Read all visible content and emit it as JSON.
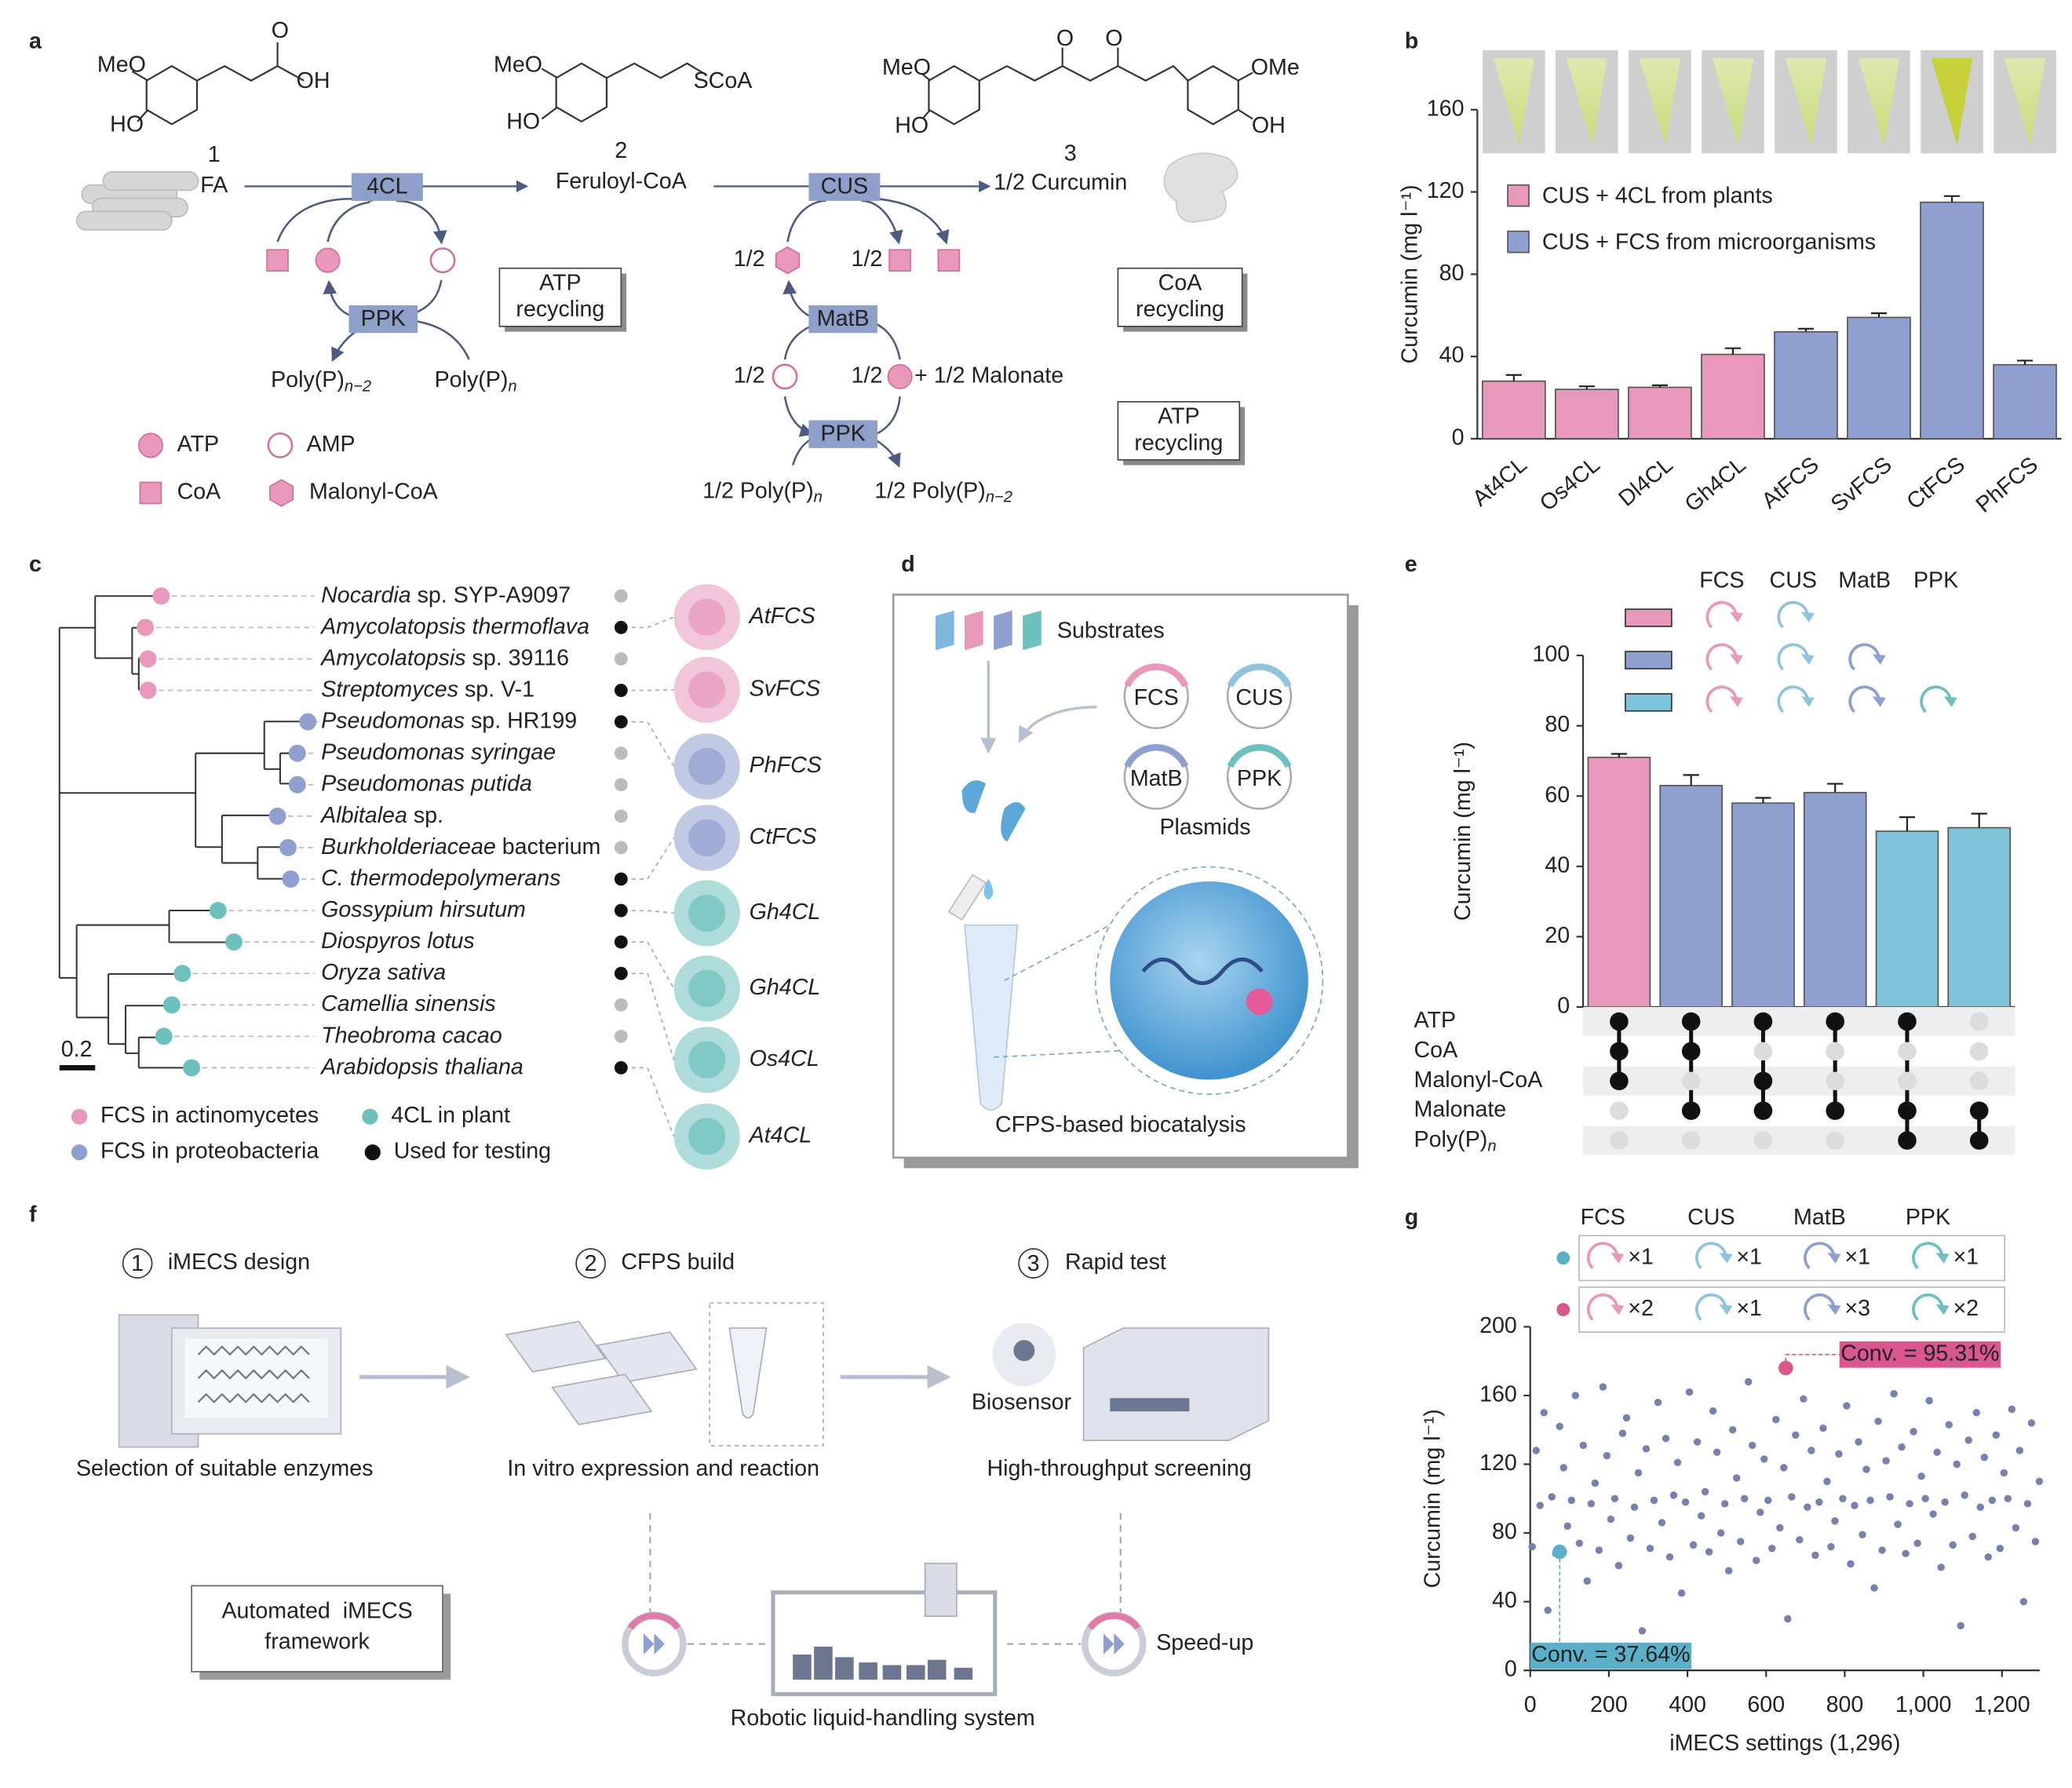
{
  "panel_labels": [
    "a",
    "b",
    "c",
    "d",
    "e",
    "f",
    "g"
  ],
  "pathway": {
    "structures": {
      "s1": [
        "MeO",
        "HO",
        "O",
        "OH"
      ],
      "s2": [
        "MeO",
        "HO",
        "SCoA"
      ],
      "s3": [
        "MeO",
        "HO",
        "O",
        "O",
        "OMe",
        "OH"
      ]
    },
    "compounds": [
      {
        "number": "1",
        "name": "FA"
      },
      {
        "number": "2",
        "name": "Feruloyl-CoA"
      },
      {
        "number": "3",
        "name": "1/2 Curcumin"
      }
    ],
    "enzymes": [
      "4CL",
      "CUS",
      "PPK",
      "MatB",
      "PPK"
    ],
    "recycling": [
      [
        "ATP",
        "recycling"
      ],
      [
        "CoA",
        "recycling"
      ],
      [
        "ATP",
        "recycling"
      ]
    ],
    "half_labels": [
      "1/2",
      "1/2",
      "1/2",
      "1/2"
    ],
    "malonate": "+ 1/2 Malonate",
    "polyp": [
      {
        "text": "Poly(P)",
        "sub": "n−2"
      },
      {
        "text": "Poly(P)",
        "sub": "n"
      },
      {
        "text": "1/2 Poly(P)",
        "sub": "n"
      },
      {
        "text": "1/2 Poly(P)",
        "sub": "n−2"
      }
    ],
    "legend": [
      "ATP",
      "AMP",
      "CoA",
      "Malonyl-CoA"
    ]
  },
  "tree": {
    "species": [
      {
        "italic": "Nocardia",
        "plain": " sp. SYP-A9097",
        "group": 0,
        "used": false
      },
      {
        "italic": "Amycolatopsis thermoflava",
        "group": 0,
        "used": true
      },
      {
        "italic": "Amycolatopsis",
        "plain": " sp. 39116",
        "group": 0,
        "used": false
      },
      {
        "italic": "Streptomyces",
        "plain": " sp. V-1",
        "group": 0,
        "used": true
      },
      {
        "italic": "Pseudomonas",
        "plain": " sp. HR199",
        "group": 1,
        "used": true
      },
      {
        "italic": "Pseudomonas syringae",
        "group": 1,
        "used": false
      },
      {
        "italic": "Pseudomonas putida",
        "group": 1,
        "used": false
      },
      {
        "italic": "Albitalea",
        "plain": " sp.",
        "group": 1,
        "used": false
      },
      {
        "italic": "Burkholderiaceae",
        "plain": " bacterium",
        "group": 1,
        "used": false
      },
      {
        "italic": "C. thermodepolymerans",
        "group": 1,
        "used": true
      },
      {
        "italic": "Gossypium hirsutum",
        "group": 2,
        "used": true
      },
      {
        "italic": "Diospyros lotus",
        "group": 2,
        "used": true
      },
      {
        "italic": "Oryza sativa",
        "group": 2,
        "used": true
      },
      {
        "italic": "Camellia sinensis",
        "group": 2,
        "used": false
      },
      {
        "italic": "Theobroma cacao",
        "group": 2,
        "used": false
      },
      {
        "italic": "Arabidopsis thaliana",
        "group": 2,
        "used": true
      }
    ],
    "groups": [
      {
        "name": "FCS in actinomycetes",
        "color": "#e898bb"
      },
      {
        "name": "FCS in proteobacteria",
        "color": "#8e9fd0"
      },
      {
        "name": "4CL in plant",
        "color": "#6cc0bd"
      }
    ],
    "used_label": "Used for testing",
    "scale": "0.2",
    "enzymes": [
      {
        "name": "AtFCS",
        "group": 0
      },
      {
        "name": "SvFCS",
        "group": 0
      },
      {
        "name": "PhFCS",
        "group": 1
      },
      {
        "name": "CtFCS",
        "group": 1
      },
      {
        "name": "Gh4CL",
        "group": 2
      },
      {
        "name": "Gh4CL",
        "group": 2
      },
      {
        "name": "Os4CL",
        "group": 2
      },
      {
        "name": "At4CL",
        "group": 2
      }
    ]
  },
  "cfps": {
    "substrates": "Substrates",
    "plasmids": [
      "FCS",
      "CUS",
      "MatB",
      "PPK"
    ],
    "plasmids_label": "Plasmids",
    "caption": "CFPS-based biocatalysis"
  },
  "workflow": {
    "steps": [
      {
        "number": "1",
        "title": "iMECS design",
        "caption": "Selection of suitable enzymes"
      },
      {
        "number": "2",
        "title": "CFPS build",
        "caption": "In vitro expression and reaction"
      },
      {
        "number": "3",
        "title": "Rapid test",
        "caption": "High-throughput screening"
      }
    ],
    "biosensor": "Biosensor",
    "framework": [
      "Automated  iMECS",
      "framework"
    ],
    "robot": "Robotic liquid-handling system",
    "speedup": "Speed-up"
  },
  "chart_data": [
    {
      "type": "bar",
      "categories": [
        "At4CL",
        "Os4CL",
        "Dl4CL",
        "Gh4CL",
        "AtFCS",
        "SvFCS",
        "CtFCS",
        "PhFCS"
      ],
      "values": [
        28,
        24,
        25,
        41,
        52,
        59,
        115,
        36
      ],
      "errors": [
        3,
        1.5,
        1,
        3,
        1.5,
        2,
        3,
        2
      ],
      "colors": [
        "#e898bb",
        "#e898bb",
        "#e898bb",
        "#e898bb",
        "#8e9fd0",
        "#8e9fd0",
        "#8e9fd0",
        "#8e9fd0"
      ],
      "legend": [
        {
          "name": "CUS + 4CL from plants",
          "color": "#e898bb"
        },
        {
          "name": "CUS + FCS from microorganisms",
          "color": "#8e9fd0"
        }
      ],
      "ylabel": "Curcumin (mg l⁻¹)",
      "ylim": [
        0,
        160
      ],
      "yticks": [
        0,
        40,
        80,
        120,
        160
      ]
    },
    {
      "type": "bar",
      "values": [
        71,
        63,
        58,
        61,
        50,
        51
      ],
      "errors": [
        1,
        3,
        1.5,
        2.5,
        4,
        4
      ],
      "colors": [
        "#e898bb",
        "#8e9fd0",
        "#8e9fd0",
        "#8e9fd0",
        "#7fc3da",
        "#7fc3da"
      ],
      "ylabel": "Curcumin (mg l⁻¹)",
      "ylim": [
        0,
        100
      ],
      "yticks": [
        0,
        20,
        40,
        60,
        80,
        100
      ],
      "enzyme_columns": [
        "FCS",
        "CUS",
        "MatB",
        "PPK"
      ],
      "enzyme_sets": [
        {
          "color": "#e898bb",
          "present": [
            true,
            true,
            false,
            false
          ]
        },
        {
          "color": "#8e9fd0",
          "present": [
            true,
            true,
            true,
            false
          ]
        },
        {
          "color": "#7fc3da",
          "present": [
            true,
            true,
            true,
            true
          ]
        }
      ],
      "matrix_rows": [
        "ATP",
        "CoA",
        "Malonyl-CoA",
        "Malonate",
        {
          "text": "Poly(P)",
          "sub": "n"
        }
      ],
      "matrix": [
        [
          true,
          true,
          true,
          false,
          false
        ],
        [
          true,
          true,
          false,
          true,
          false
        ],
        [
          true,
          false,
          true,
          true,
          false
        ],
        [
          true,
          false,
          false,
          true,
          false
        ],
        [
          true,
          false,
          false,
          true,
          true
        ],
        [
          false,
          false,
          false,
          true,
          true
        ]
      ]
    },
    {
      "type": "scatter",
      "color": "#7482ad",
      "x": [
        5,
        15,
        25,
        35,
        45,
        55,
        65,
        75,
        85,
        95,
        105,
        115,
        125,
        135,
        145,
        155,
        165,
        175,
        185,
        195,
        205,
        215,
        225,
        235,
        245,
        255,
        265,
        275,
        285,
        295,
        305,
        315,
        325,
        335,
        345,
        355,
        365,
        375,
        385,
        395,
        405,
        415,
        425,
        435,
        445,
        455,
        465,
        475,
        485,
        495,
        505,
        515,
        525,
        535,
        545,
        555,
        565,
        575,
        585,
        595,
        605,
        615,
        625,
        635,
        645,
        655,
        665,
        675,
        685,
        695,
        705,
        715,
        725,
        735,
        745,
        755,
        765,
        775,
        785,
        795,
        805,
        815,
        825,
        835,
        845,
        855,
        865,
        875,
        885,
        895,
        905,
        915,
        925,
        935,
        945,
        955,
        965,
        975,
        985,
        995,
        1005,
        1015,
        1025,
        1035,
        1045,
        1055,
        1065,
        1075,
        1085,
        1095,
        1105,
        1115,
        1125,
        1135,
        1145,
        1155,
        1165,
        1175,
        1185,
        1195,
        1205,
        1215,
        1225,
        1235,
        1245,
        1255,
        1265,
        1275,
        1285,
        1295
      ],
      "y": [
        72,
        128,
        96,
        150,
        35,
        101,
        68,
        142,
        118,
        84,
        99,
        160,
        74,
        131,
        52,
        97,
        109,
        70,
        165,
        125,
        88,
        100,
        61,
        138,
        147,
        77,
        95,
        115,
        23,
        129,
        71,
        99,
        156,
        86,
        135,
        66,
        102,
        121,
        45,
        98,
        162,
        73,
        133,
        90,
        104,
        69,
        151,
        127,
        80,
        97,
        58,
        140,
        112,
        75,
        100,
        168,
        131,
        64,
        92,
        123,
        99,
        71,
        146,
        83,
        118,
        30,
        101,
        137,
        76,
        158,
        95,
        128,
        67,
        98,
        141,
        110,
        72,
        87,
        126,
        100,
        154,
        62,
        96,
        133,
        79,
        117,
        99,
        48,
        145,
        70,
        122,
        101,
        161,
        85,
        130,
        68,
        97,
        139,
        74,
        113,
        100,
        157,
        91,
        127,
        60,
        98,
        143,
        73,
        120,
        26,
        102,
        134,
        78,
        150,
        95,
        124,
        66,
        99,
        137,
        71,
        115,
        100,
        152,
        83,
        128,
        40,
        97,
        144,
        75,
        110
      ],
      "highlights": [
        {
          "x": 75,
          "y": 69,
          "color": "#5ab0c8",
          "label": "Conv. = 37.64%"
        },
        {
          "x": 650,
          "y": 176,
          "color": "#d9578e",
          "label": "Conv. = 95.31%"
        }
      ],
      "legend_columns": [
        "FCS",
        "CUS",
        "MatB",
        "PPK"
      ],
      "legend_rows": [
        {
          "color": "#5ab0c8",
          "counts": [
            "×1",
            "×1",
            "×1",
            "×1"
          ]
        },
        {
          "color": "#d9578e",
          "counts": [
            "×2",
            "×1",
            "×3",
            "×2"
          ]
        }
      ],
      "xlabel": "iMECS settings (1,296)",
      "ylabel": "Curcumin (mg l⁻¹)",
      "xlim": [
        0,
        1296
      ],
      "xticks": [
        0,
        200,
        400,
        600,
        800,
        {
          "value": 1000,
          "label": "1,000"
        },
        {
          "value": 1200,
          "label": "1,200"
        }
      ],
      "ylim": [
        0,
        200
      ],
      "yticks": [
        0,
        40,
        80,
        120,
        160,
        200
      ]
    }
  ]
}
